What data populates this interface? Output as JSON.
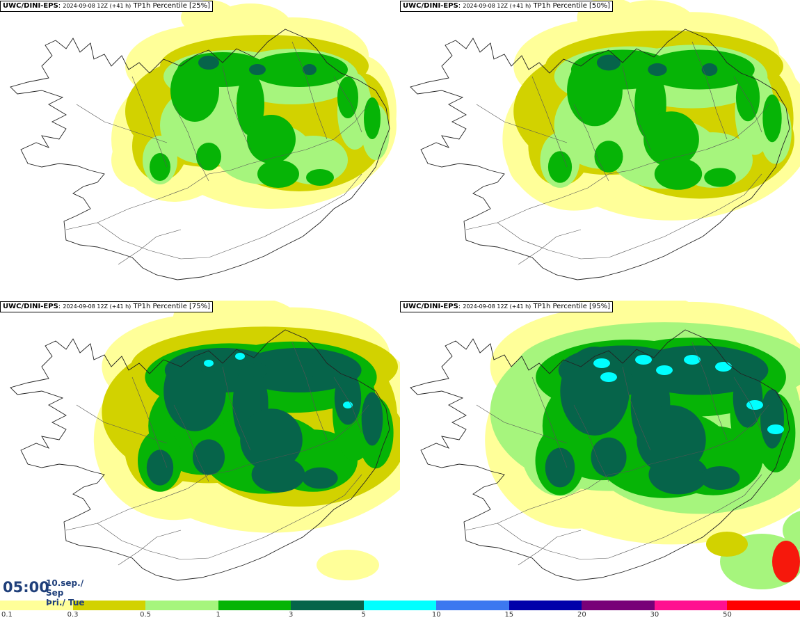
{
  "panels": [
    {
      "model": "UWC/DINI-EPS",
      "run": "2024-09-08 12Z (+41 h)",
      "field": "TP1h Percentile [25%]",
      "level": 0
    },
    {
      "model": "UWC/DINI-EPS",
      "run": "2024-09-08 12Z (+41 h)",
      "field": "TP1h Percentile [50%]",
      "level": 1
    },
    {
      "model": "UWC/DINI-EPS",
      "run": "2024-09-08 12Z (+41 h)",
      "field": "TP1h Percentile [75%]",
      "level": 2
    },
    {
      "model": "UWC/DINI-EPS",
      "run": "2024-09-08 12Z (+41 h)",
      "field": "TP1h Percentile [95%]",
      "level": 3
    }
  ],
  "valid_time": {
    "time": "05:00",
    "date_line1": "10.sep./ Sep",
    "date_line2": "Þri./ Tue"
  },
  "legend": {
    "labels": [
      "0.1",
      "0.3",
      "0.5",
      "1",
      "3",
      "5",
      "10",
      "15",
      "20",
      "30",
      "50"
    ],
    "colors": [
      "#ffff99",
      "#d2d200",
      "#a6f57d",
      "#06b406",
      "#06644a",
      "#00ffff",
      "#3c78f0",
      "#0000aa",
      "#780078",
      "#ff1090",
      "#ff0000"
    ]
  }
}
